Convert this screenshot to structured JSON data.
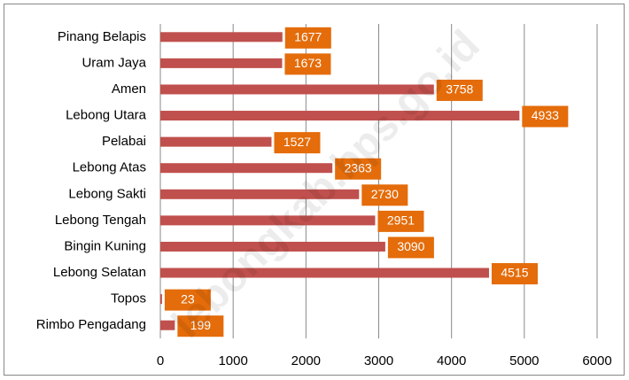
{
  "chart_data": {
    "type": "bar",
    "orientation": "horizontal",
    "categories": [
      "Pinang Belapis",
      "Uram Jaya",
      "Amen",
      "Lebong Utara",
      "Pelabai",
      "Lebong Atas",
      "Lebong Sakti",
      "Lebong Tengah",
      "Bingin Kuning",
      "Lebong Selatan",
      "Topos",
      "Rimbo Pengadang"
    ],
    "values": [
      1677,
      1673,
      3758,
      4933,
      1527,
      2363,
      2730,
      2951,
      3090,
      4515,
      23,
      199
    ],
    "color": "#c0504d",
    "label_color": "#e46c0a",
    "xlim": [
      0,
      6000
    ],
    "xticks": [
      0,
      1000,
      2000,
      3000,
      4000,
      5000,
      6000
    ],
    "grid": true,
    "watermark": "lebongkab.bps.go.id"
  }
}
